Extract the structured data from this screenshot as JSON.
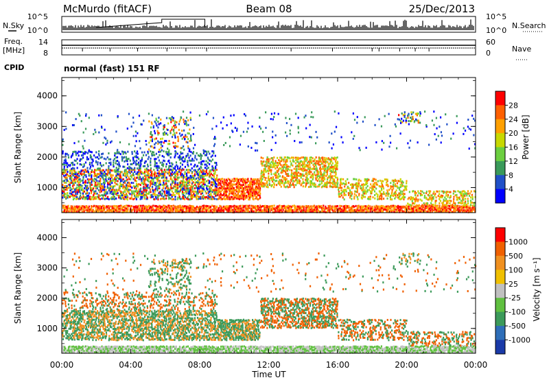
{
  "header": {
    "station": "McMurdo (fitACF)",
    "beam": "Beam 08",
    "date": "25/Dec/2013"
  },
  "left_labels": {
    "nsky": "N.Sky",
    "freq_line1": "Freq.",
    "freq_line2": "[MHz]",
    "cpid": "CPID"
  },
  "right_labels": {
    "nsearch": "N.Search",
    "nave": "Nave"
  },
  "cpid_text": "normal (fast) 151 RF",
  "chart_data": [
    {
      "type": "line",
      "name": "noise",
      "y_ticks_left": [
        "10^5",
        "10^0"
      ],
      "y_ticks_right": [
        "10^5",
        "10^0"
      ],
      "x_range_hours": [
        0,
        24
      ]
    },
    {
      "type": "line",
      "name": "frequency-nave",
      "y_ticks_left": [
        "14",
        "8"
      ],
      "y_ticks_right": [
        "60",
        "0"
      ],
      "x_range_hours": [
        0,
        24
      ]
    },
    {
      "type": "heatmap",
      "name": "power",
      "ylabel": "Slant Range [km]",
      "y_ticks": [
        "1000",
        "2000",
        "3000",
        "4000"
      ],
      "ylim": [
        180,
        4600
      ],
      "colorbar_label": "Power [dB]",
      "colorbar_ticks": [
        "4",
        "8",
        "12",
        "16",
        "20",
        "24",
        "28"
      ],
      "colorbar_colors": [
        "#0000ff",
        "#2050c8",
        "#3a9a5a",
        "#6ccf40",
        "#c8d800",
        "#ffa000",
        "#ff6000",
        "#ff0000"
      ]
    },
    {
      "type": "heatmap",
      "name": "velocity",
      "ylabel": "Slant Range [km]",
      "y_ticks": [
        "1000",
        "2000",
        "3000",
        "4000"
      ],
      "ylim": [
        180,
        4600
      ],
      "colorbar_label": "Velocity [m s⁻¹]",
      "colorbar_ticks": [
        "1000",
        "500",
        "100",
        "25",
        "-25",
        "-100",
        "-500",
        "-1000"
      ],
      "colorbar_colors": [
        "#1a3aa8",
        "#2e6eb8",
        "#3c9a5a",
        "#60c040",
        "#c0c0c0",
        "#f0c000",
        "#f09020",
        "#f06000",
        "#ff0000"
      ]
    }
  ],
  "x_axis": {
    "label": "Time UT",
    "ticks": [
      "00:00",
      "04:00",
      "08:00",
      "12:00",
      "16:00",
      "20:00",
      "00:00"
    ]
  }
}
